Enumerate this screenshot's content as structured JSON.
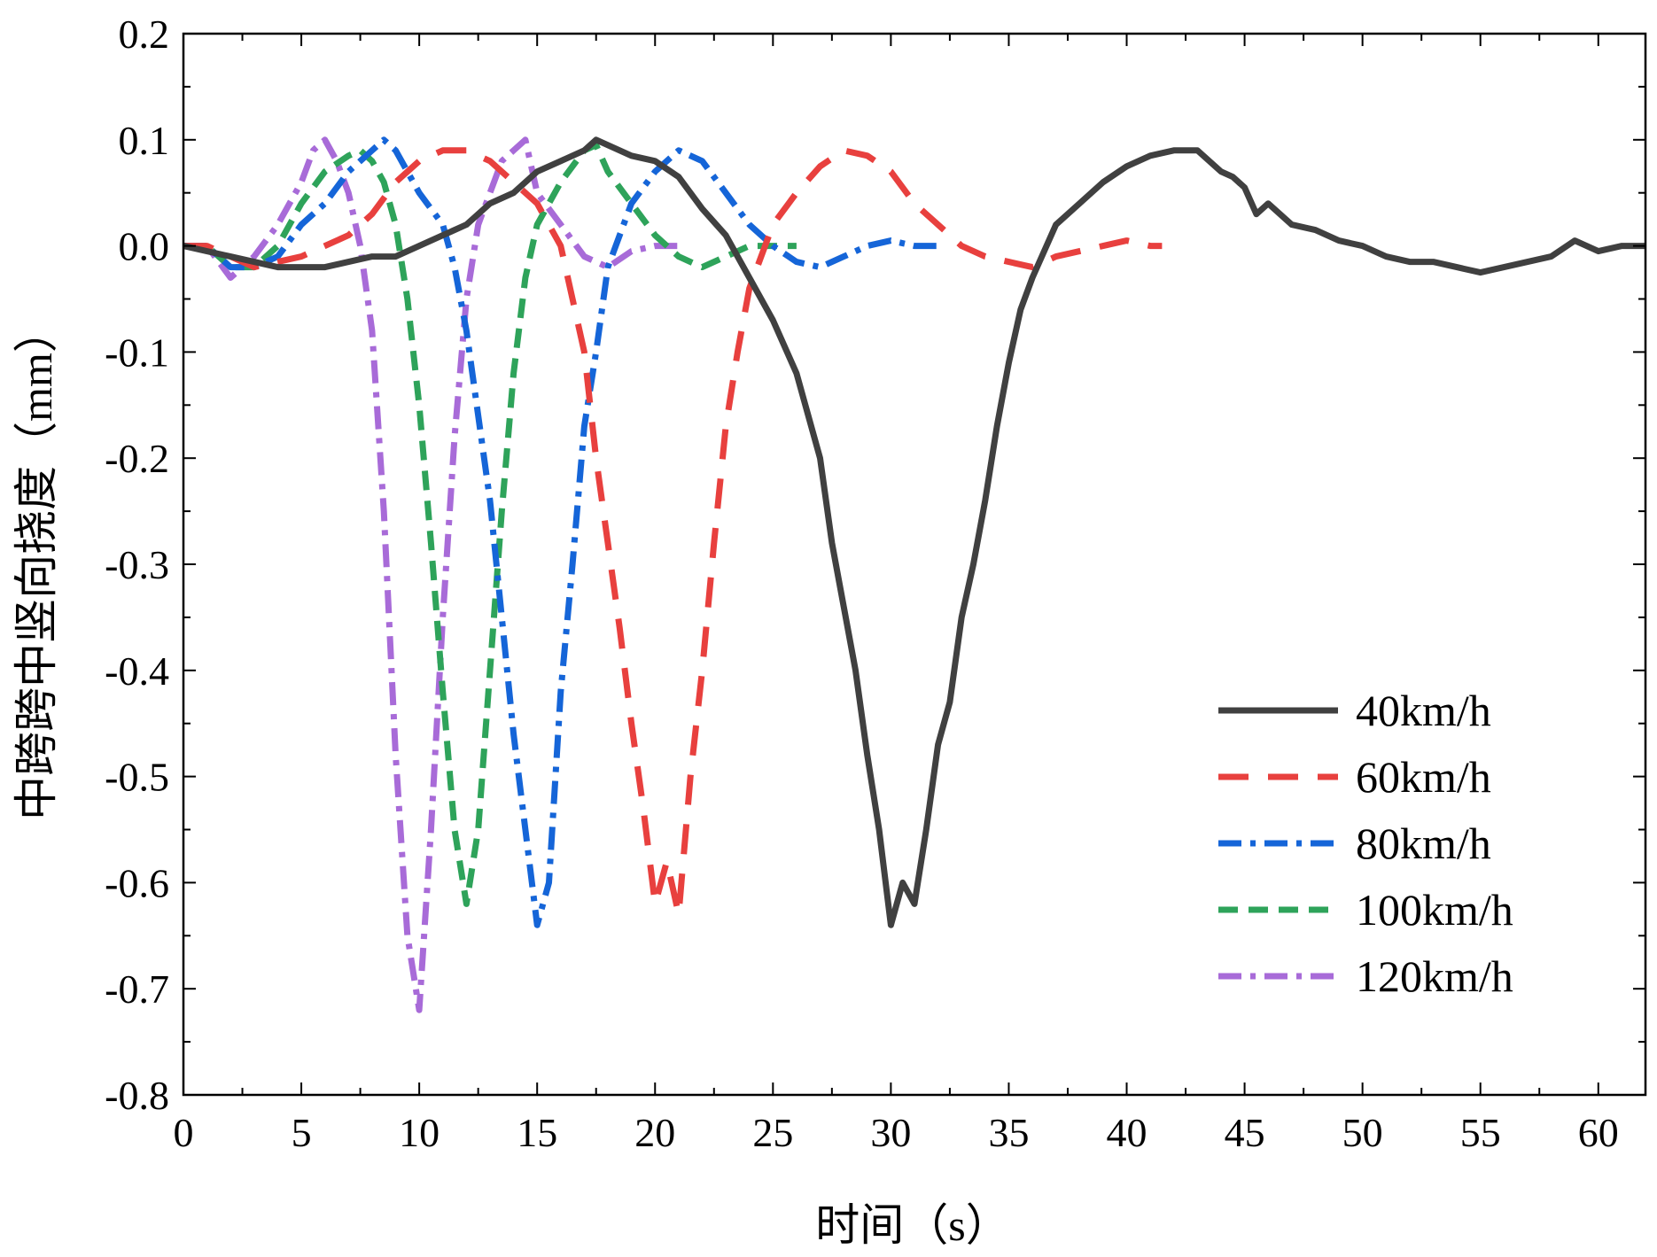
{
  "chart_data": {
    "type": "line",
    "title": "",
    "xlabel": "时间（s）",
    "ylabel": "中跨跨中竖向挠度（mm）",
    "xlim": [
      0,
      62
    ],
    "ylim": [
      -0.8,
      0.2
    ],
    "xticks": [
      0,
      5,
      10,
      15,
      20,
      25,
      30,
      35,
      40,
      45,
      50,
      55,
      60
    ],
    "xtick_labels": [
      "0",
      "5",
      "10",
      "15",
      "20",
      "25",
      "30",
      "35",
      "40",
      "45",
      "50",
      "55",
      "60"
    ],
    "yticks": [
      0.2,
      0.1,
      0.0,
      -0.1,
      -0.2,
      -0.3,
      -0.4,
      -0.5,
      -0.6,
      -0.7,
      -0.8
    ],
    "ytick_labels": [
      "0.2",
      "0.1",
      "0.0",
      "-0.1",
      "-0.2",
      "-0.3",
      "-0.4",
      "-0.5",
      "-0.6",
      "-0.7",
      "-0.8"
    ],
    "grid": false,
    "legend_position": "bottom-right",
    "series": [
      {
        "name": "40km/h",
        "color": "#404040",
        "dash": "solid",
        "x": [
          0,
          2,
          4,
          6,
          7,
          8,
          9,
          10,
          11,
          12,
          13,
          14,
          15,
          16,
          17,
          17.5,
          18,
          19,
          20,
          21,
          22,
          23,
          24,
          25,
          26,
          27,
          27.5,
          28,
          28.5,
          29,
          29.5,
          30,
          30.5,
          31,
          31.5,
          32,
          32.5,
          33,
          33.5,
          34,
          34.5,
          35,
          35.5,
          36,
          37,
          38,
          39,
          40,
          41,
          42,
          43,
          44,
          44.5,
          45,
          45.5,
          46,
          47,
          48,
          49,
          50,
          51,
          52,
          53,
          54,
          55,
          56,
          57,
          58,
          59,
          60,
          61,
          62
        ],
        "y": [
          0,
          -0.01,
          -0.02,
          -0.02,
          -0.015,
          -0.01,
          -0.01,
          0.0,
          0.01,
          0.02,
          0.04,
          0.05,
          0.07,
          0.08,
          0.09,
          0.1,
          0.095,
          0.085,
          0.08,
          0.065,
          0.035,
          0.01,
          -0.03,
          -0.07,
          -0.12,
          -0.2,
          -0.28,
          -0.34,
          -0.4,
          -0.48,
          -0.55,
          -0.64,
          -0.6,
          -0.62,
          -0.55,
          -0.47,
          -0.43,
          -0.35,
          -0.3,
          -0.24,
          -0.17,
          -0.11,
          -0.06,
          -0.03,
          0.02,
          0.04,
          0.06,
          0.075,
          0.085,
          0.09,
          0.09,
          0.07,
          0.065,
          0.055,
          0.03,
          0.04,
          0.02,
          0.015,
          0.005,
          0.0,
          -0.01,
          -0.015,
          -0.015,
          -0.02,
          -0.025,
          -0.02,
          -0.015,
          -0.01,
          0.005,
          -0.005,
          0.0,
          0.0
        ]
      },
      {
        "name": "60km/h",
        "color": "#E8403E",
        "dash": "long-dash",
        "x": [
          0,
          1,
          2,
          3,
          4,
          5,
          6,
          7,
          8,
          9,
          10,
          11,
          12,
          13,
          14,
          15,
          16,
          16.5,
          17,
          17.5,
          18,
          18.5,
          19,
          19.5,
          20,
          20.5,
          21,
          21.5,
          22,
          22.5,
          23,
          23.5,
          24,
          25,
          26,
          27,
          28,
          29,
          30,
          31,
          32,
          33,
          34,
          35,
          36,
          37,
          38,
          39,
          40,
          41,
          41.5
        ],
        "y": [
          0,
          0,
          -0.01,
          -0.02,
          -0.015,
          -0.01,
          0.0,
          0.01,
          0.03,
          0.06,
          0.08,
          0.09,
          0.09,
          0.08,
          0.06,
          0.04,
          0.0,
          -0.05,
          -0.1,
          -0.2,
          -0.28,
          -0.36,
          -0.45,
          -0.53,
          -0.62,
          -0.58,
          -0.63,
          -0.5,
          -0.4,
          -0.28,
          -0.17,
          -0.1,
          -0.04,
          0.02,
          0.05,
          0.075,
          0.09,
          0.085,
          0.07,
          0.04,
          0.02,
          0.0,
          -0.01,
          -0.015,
          -0.02,
          -0.01,
          -0.005,
          0.0,
          0.005,
          0.0,
          0.0
        ]
      },
      {
        "name": "80km/h",
        "color": "#1565D8",
        "dash": "dash-dot",
        "x": [
          0,
          1,
          2,
          3,
          4,
          5,
          6,
          7,
          8,
          8.5,
          9,
          10,
          11,
          11.5,
          12,
          12.5,
          13,
          13.5,
          14,
          14.5,
          15,
          15.5,
          16,
          16.5,
          17,
          17.5,
          18,
          19,
          20,
          21,
          22,
          23,
          24,
          25,
          26,
          27,
          28,
          29,
          30,
          31,
          32
        ],
        "y": [
          0,
          0,
          -0.02,
          -0.02,
          -0.01,
          0.02,
          0.04,
          0.07,
          0.09,
          0.1,
          0.09,
          0.05,
          0.02,
          -0.02,
          -0.08,
          -0.16,
          -0.24,
          -0.35,
          -0.46,
          -0.55,
          -0.64,
          -0.6,
          -0.42,
          -0.3,
          -0.17,
          -0.1,
          -0.02,
          0.04,
          0.07,
          0.09,
          0.08,
          0.05,
          0.02,
          0.0,
          -0.015,
          -0.02,
          -0.01,
          0.0,
          0.005,
          0.0,
          0.0
        ]
      },
      {
        "name": "100km/h",
        "color": "#2EA35A",
        "dash": "dash",
        "x": [
          0,
          1,
          2,
          3,
          4,
          5,
          6,
          7,
          7.5,
          8,
          8.5,
          9,
          9.5,
          10,
          10.5,
          11,
          11.5,
          12,
          12.5,
          13,
          13.5,
          14,
          14.5,
          15,
          16,
          17,
          17.5,
          18,
          19,
          20,
          21,
          22,
          23,
          24,
          25,
          26
        ],
        "y": [
          0,
          0,
          -0.02,
          -0.02,
          0.0,
          0.04,
          0.07,
          0.085,
          0.09,
          0.08,
          0.06,
          0.02,
          -0.05,
          -0.15,
          -0.28,
          -0.42,
          -0.55,
          -0.62,
          -0.55,
          -0.4,
          -0.25,
          -0.12,
          -0.03,
          0.02,
          0.06,
          0.09,
          0.095,
          0.07,
          0.04,
          0.01,
          -0.01,
          -0.02,
          -0.01,
          0.0,
          0.0,
          0.0
        ]
      },
      {
        "name": "120km/h",
        "color": "#A86BD8",
        "dash": "dash-dot",
        "x": [
          0,
          1,
          2,
          3,
          4,
          5,
          5.5,
          6,
          6.5,
          7,
          7.5,
          8,
          8.5,
          9,
          9.5,
          10,
          10.5,
          11,
          11.5,
          12,
          12.5,
          13,
          13.5,
          14,
          14.5,
          15,
          16,
          17,
          18,
          19,
          20,
          21
        ],
        "y": [
          0,
          0,
          -0.03,
          -0.01,
          0.02,
          0.06,
          0.09,
          0.1,
          0.08,
          0.05,
          0.0,
          -0.08,
          -0.25,
          -0.48,
          -0.65,
          -0.72,
          -0.55,
          -0.35,
          -0.18,
          -0.05,
          0.02,
          0.05,
          0.08,
          0.09,
          0.1,
          0.05,
          0.02,
          -0.01,
          -0.02,
          -0.005,
          0.0,
          0.0
        ]
      }
    ]
  }
}
